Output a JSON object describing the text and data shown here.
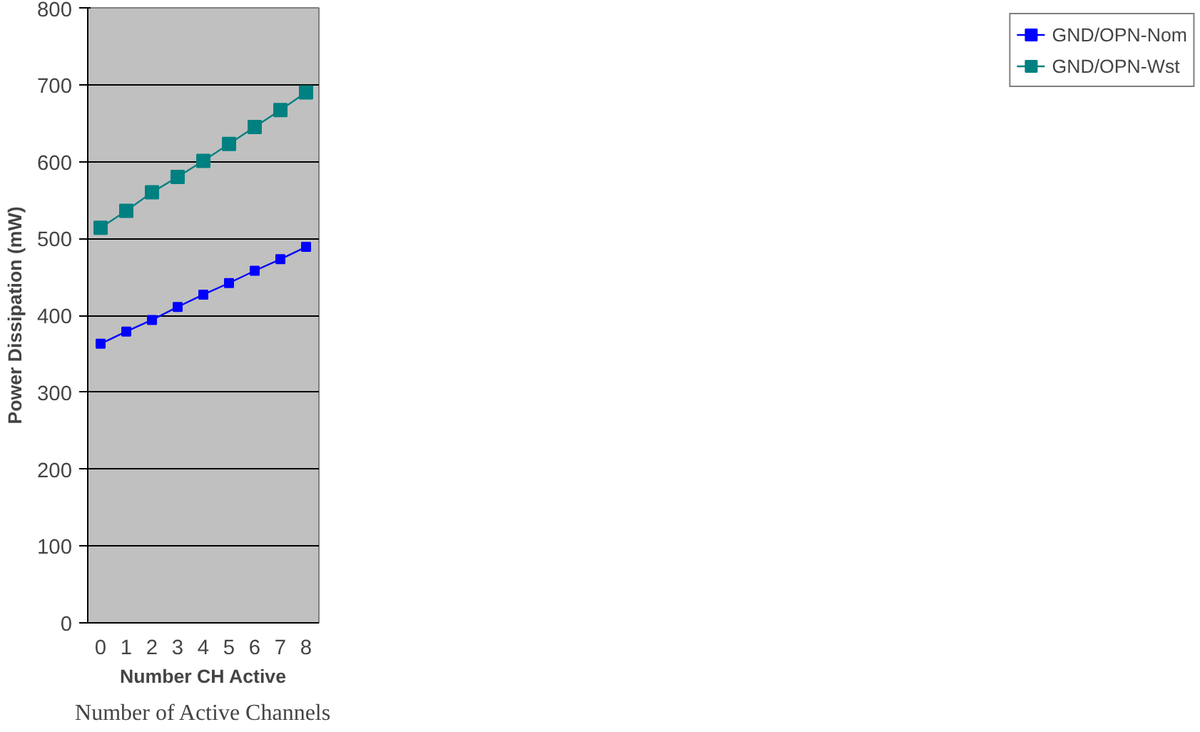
{
  "chart_data": {
    "type": "line",
    "xlabel": "Number CH Active",
    "ylabel": "Power Dissipation (mW)",
    "categories": [
      "0",
      "1",
      "2",
      "3",
      "4",
      "5",
      "6",
      "7",
      "8"
    ],
    "series": [
      {
        "name": "GND/OPN-Nom",
        "color": "#0000ff",
        "values": [
          363,
          379,
          394,
          411,
          427,
          442,
          458,
          473,
          489
        ]
      },
      {
        "name": "GND/OPN-Wst",
        "color": "#008080",
        "values": [
          514,
          536,
          560,
          580,
          601,
          623,
          645,
          667,
          690
        ]
      }
    ],
    "ylim": [
      0,
      800
    ],
    "yticks": [
      0,
      100,
      200,
      300,
      400,
      500,
      600,
      700,
      800
    ],
    "grid": "y",
    "legend": "right",
    "marker": "square",
    "line_style": "solid",
    "annotations": [
      "Number of Active Channels"
    ]
  }
}
